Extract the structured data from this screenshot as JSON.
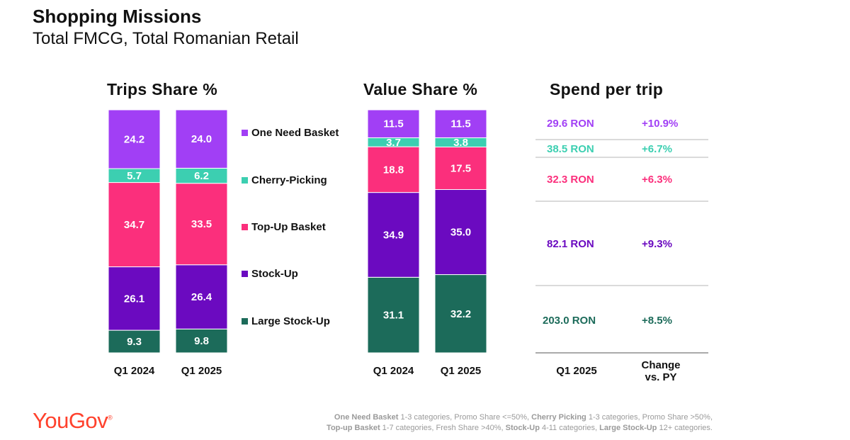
{
  "header": {
    "title": "Shopping Missions",
    "subtitle": "Total FMCG, Total Romanian Retail"
  },
  "sections": {
    "trips": "Trips Share %",
    "value": "Value Share %",
    "spend": "Spend per trip"
  },
  "colors": {
    "one_need": "#a13ff5",
    "cherry": "#3ccfb1",
    "top_up": "#fb2f7c",
    "stock_up": "#6b0ac0",
    "large_stock_up": "#1c6b5a"
  },
  "chart_data": [
    {
      "type": "bar",
      "stacked": true,
      "title": "Trips Share %",
      "categories": [
        "Q1 2024",
        "Q1 2025"
      ],
      "series": [
        {
          "name": "Large Stock-Up",
          "values": [
            9.3,
            9.8
          ]
        },
        {
          "name": "Stock-Up",
          "values": [
            26.1,
            26.4
          ]
        },
        {
          "name": "Top-Up Basket",
          "values": [
            34.7,
            33.5
          ]
        },
        {
          "name": "Cherry-Picking",
          "values": [
            5.7,
            6.2
          ]
        },
        {
          "name": "One Need Basket",
          "values": [
            24.2,
            24.0
          ]
        }
      ],
      "legend": "right"
    },
    {
      "type": "bar",
      "stacked": true,
      "title": "Value Share %",
      "categories": [
        "Q1 2024",
        "Q1 2025"
      ],
      "series": [
        {
          "name": "Large Stock-Up",
          "values": [
            31.1,
            32.2
          ]
        },
        {
          "name": "Stock-Up",
          "values": [
            34.9,
            35.0
          ]
        },
        {
          "name": "Top-Up Basket",
          "values": [
            18.8,
            17.5
          ]
        },
        {
          "name": "Cherry-Picking",
          "values": [
            3.7,
            3.8
          ]
        },
        {
          "name": "One Need Basket",
          "values": [
            11.5,
            11.5
          ]
        }
      ]
    },
    {
      "type": "table",
      "title": "Spend per trip",
      "columns": [
        "Q1 2025",
        "Change vs. PY"
      ],
      "rows": [
        {
          "mission": "One Need Basket",
          "spend": "29.6 RON",
          "change": "+10.9%"
        },
        {
          "mission": "Cherry-Picking",
          "spend": "38.5 RON",
          "change": "+6.7%"
        },
        {
          "mission": "Top-Up Basket",
          "spend": "32.3 RON",
          "change": "+6.3%"
        },
        {
          "mission": "Stock-Up",
          "spend": "82.1 RON",
          "change": "+9.3%"
        },
        {
          "mission": "Large Stock-Up",
          "spend": "203.0 RON",
          "change": "+8.5%"
        }
      ]
    }
  ],
  "spend_headers": {
    "q1": "Q1 2025",
    "change_line1": "Change",
    "change_line2": "vs. PY"
  },
  "logo": "YouGov",
  "logo_mark": "®",
  "footnote": {
    "onb_label": "One Need Basket",
    "onb_text": " 1-3 categories, Promo Share <=50%, ",
    "cp_label": "Cherry Picking",
    "cp_text": " 1-3 categories, Promo Share >50%,",
    "tu_label": "Top-up Basket",
    "tu_text": " 1-7 categories, Fresh Share >40%, ",
    "su_label": "Stock-Up",
    "su_text": " 4-11 categories, ",
    "lsu_label": "Large Stock-Up",
    "lsu_text": " 12+ categories."
  }
}
